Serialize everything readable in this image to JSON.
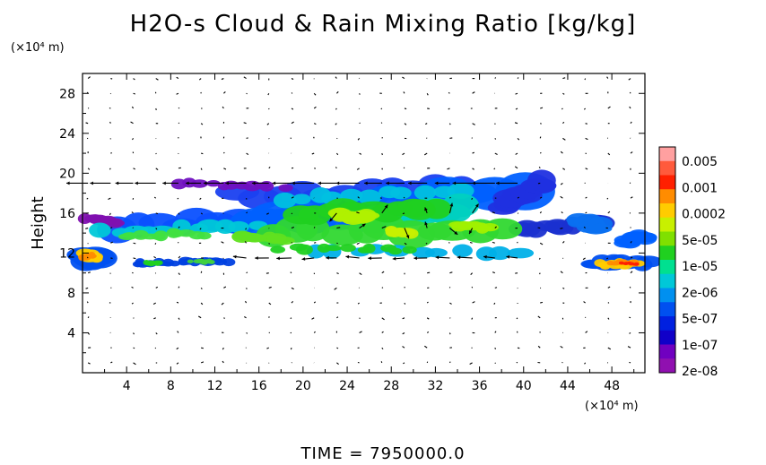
{
  "chart_data": {
    "type": "heatmap",
    "title": "H2O-s Cloud & Rain Mixing Ratio [kg/kg]",
    "ylabel": "Height",
    "y_unit": "(×10⁴ m)",
    "x_unit": "(×10⁴ m)",
    "xlim": [
      0,
      51
    ],
    "ylim": [
      0,
      30
    ],
    "x_ticks": [
      "4",
      "8",
      "12",
      "16",
      "20",
      "24",
      "28",
      "32",
      "36",
      "40",
      "44",
      "48"
    ],
    "x_tick_values": [
      4,
      8,
      12,
      16,
      20,
      24,
      28,
      32,
      36,
      40,
      44,
      48
    ],
    "y_ticks": [
      "4",
      "8",
      "12",
      "16",
      "20",
      "24",
      "28"
    ],
    "y_tick_values": [
      4,
      8,
      12,
      16,
      20,
      24,
      28
    ],
    "colorbar": {
      "labels": [
        "0.005",
        "0.001",
        "0.0002",
        "5e-05",
        "1e-05",
        "2e-06",
        "5e-07",
        "1e-07",
        "2e-08"
      ],
      "colors_top_to_bottom": [
        "#ffa0a0",
        "#ff5a3c",
        "#ff2000",
        "#ff8c00",
        "#ffcc00",
        "#c8f000",
        "#80e000",
        "#20d020",
        "#00e090",
        "#00c8d8",
        "#0090f0",
        "#0050f0",
        "#0020e0",
        "#1000c8",
        "#7000c0",
        "#9010b0"
      ]
    },
    "footer": "TIME = 7950000.0"
  }
}
